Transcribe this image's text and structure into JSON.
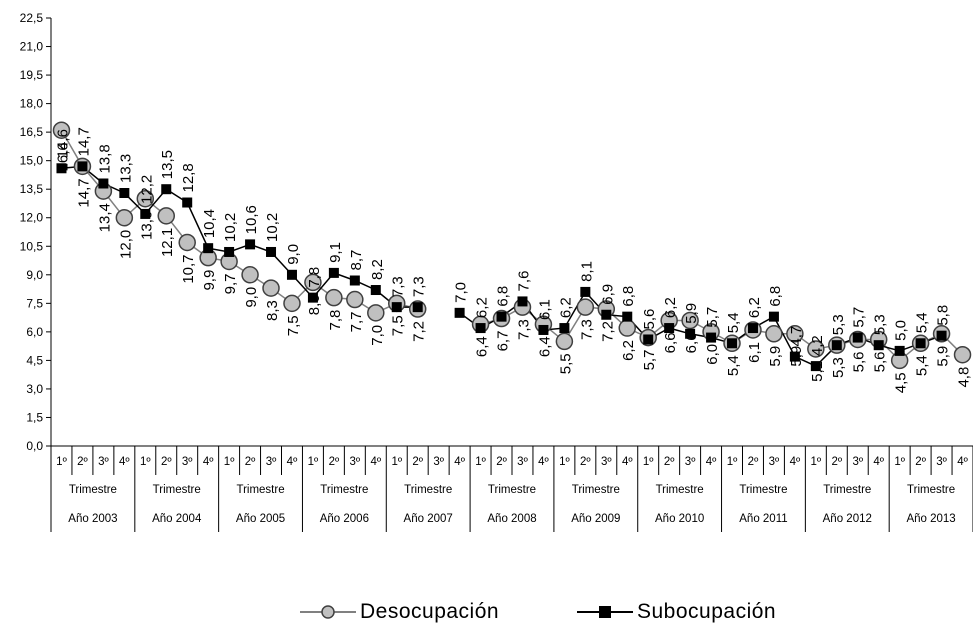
{
  "chart_data": {
    "type": "line",
    "y_ticks": [
      "0,0",
      "1,5",
      "3,0",
      "4,5",
      "6,0",
      "7,5",
      "9,0",
      "10,5",
      "12,0",
      "13,5",
      "15,0",
      "16,5",
      "18,0",
      "19,5",
      "21,0",
      "22,5"
    ],
    "ylim": [
      0,
      22.5
    ],
    "quarter_labels": [
      "1º",
      "2º",
      "3º",
      "4º"
    ],
    "trimestre_label": "Trimestre",
    "years": [
      "Año 2003",
      "Año 2004",
      "Año 2005",
      "Año 2006",
      "Año 2007",
      "Año 2008",
      "Año 2009",
      "Año 2010",
      "Año 2011",
      "Año 2012",
      "Año 2013"
    ],
    "grid": false,
    "legend_position": "bottom",
    "series": [
      {
        "name": "Desocupación",
        "marker": "circle",
        "color": "#808080",
        "values": [
          16.6,
          14.7,
          13.4,
          12.0,
          13.0,
          12.1,
          10.7,
          9.9,
          9.7,
          9.0,
          8.3,
          7.5,
          8.6,
          7.8,
          7.7,
          7.0,
          7.5,
          7.2,
          null,
          null,
          6.4,
          6.7,
          7.3,
          6.4,
          5.5,
          7.3,
          7.2,
          6.2,
          5.7,
          6.6,
          6.6,
          6.0,
          5.4,
          6.1,
          5.9,
          5.9,
          5.1,
          5.3,
          5.6,
          5.6,
          4.5,
          5.4,
          5.9,
          4.8
        ],
        "labels": [
          "16,6",
          "14,7",
          "13,4",
          "12,0",
          "13,0",
          "12,1",
          "10,7",
          "9,9",
          "9,7",
          "9,0",
          "8,3",
          "7,5",
          "8,6",
          "7,8",
          "7,7",
          "7,0",
          "7,5",
          "7,2",
          "",
          "",
          "6,4",
          "6,7",
          "7,3",
          "6,4",
          "5,5",
          "7,3",
          "7,2",
          "6,2",
          "5,7",
          "6,6",
          "6,6",
          "6,0",
          "5,4",
          "6,1",
          "5,9",
          "5,9",
          "5,1",
          "5,3",
          "5,6",
          "5,6",
          "4,5",
          "5,4",
          "5,9",
          "4,8"
        ]
      },
      {
        "name": "Subocupación",
        "marker": "square",
        "color": "#000000",
        "values": [
          14.6,
          14.7,
          13.8,
          13.3,
          12.2,
          13.5,
          12.8,
          10.4,
          10.2,
          10.6,
          10.2,
          9.0,
          7.8,
          9.1,
          8.7,
          8.2,
          7.3,
          7.3,
          null,
          7.0,
          6.2,
          6.8,
          7.6,
          6.1,
          6.2,
          8.1,
          6.9,
          6.8,
          5.6,
          6.2,
          5.9,
          5.7,
          5.4,
          6.2,
          6.8,
          4.7,
          4.2,
          5.3,
          5.7,
          5.3,
          5.0,
          5.4,
          5.8,
          null
        ],
        "labels": [
          "14,6",
          "14,7",
          "13,8",
          "13,3",
          "12,2",
          "13,5",
          "12,8",
          "10,4",
          "10,2",
          "10,6",
          "10,2",
          "9,0",
          "7,8",
          "9,1",
          "8,7",
          "8,2",
          "7,3",
          "7,3",
          "",
          "7,0",
          "6,2",
          "6,8",
          "7,6",
          "6,1",
          "6,2",
          "8,1",
          "6,9",
          "6,8",
          "5,6",
          "6,2",
          "5,9",
          "5,7",
          "5,4",
          "6,2",
          "6,8",
          "4,7",
          "4,2",
          "5,3",
          "5,7",
          "5,3",
          "5,0",
          "5,4",
          "5,8",
          ""
        ]
      }
    ]
  },
  "legend": {
    "items": [
      {
        "label": "Desocupación"
      },
      {
        "label": "Subocupación"
      }
    ]
  }
}
